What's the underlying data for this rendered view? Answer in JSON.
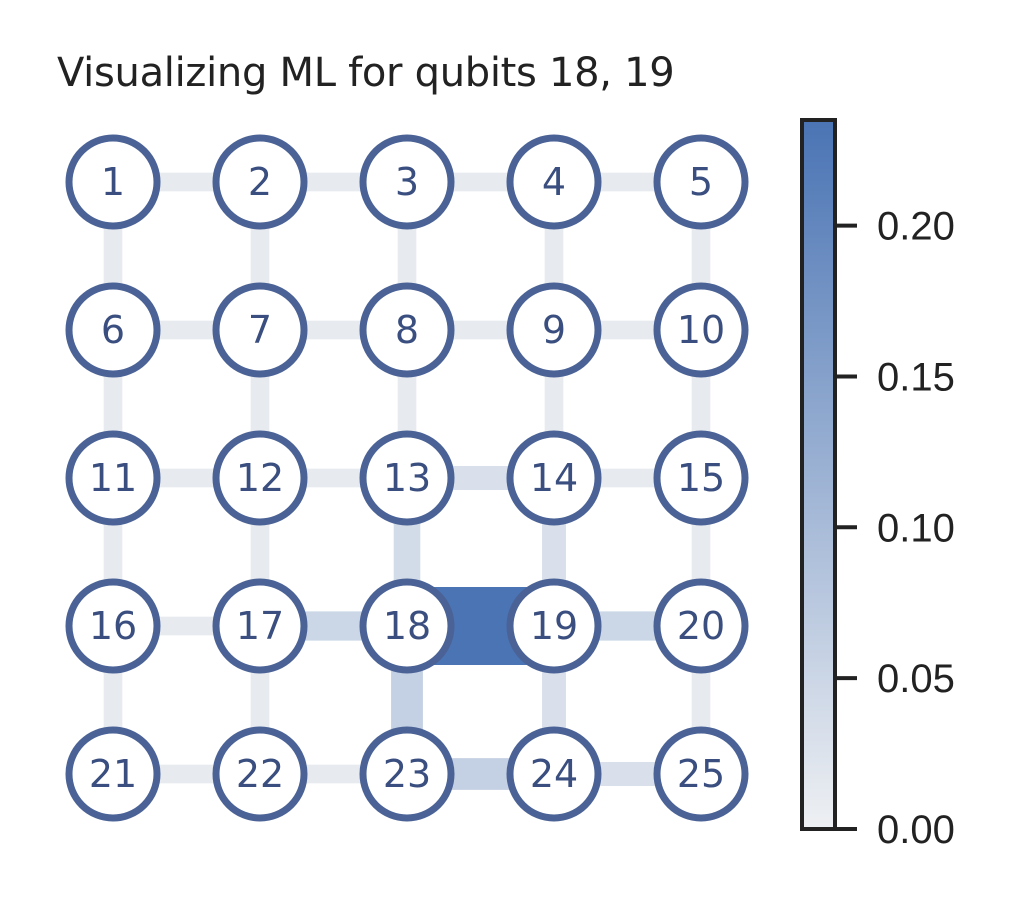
{
  "title": "Visualizing ML for qubits 18, 19",
  "colors": {
    "node_stroke": "#4a6295",
    "node_fill": "#ffffff",
    "label_color": "#3a4f7f",
    "cmap_low": "#eef0f3",
    "cmap_high": "#4a74b4",
    "axis": "#222222"
  },
  "grid": {
    "rows": 5,
    "cols": 5
  },
  "qubits": [
    "1",
    "2",
    "3",
    "4",
    "5",
    "6",
    "7",
    "8",
    "9",
    "10",
    "11",
    "12",
    "13",
    "14",
    "15",
    "16",
    "17",
    "18",
    "19",
    "20",
    "21",
    "22",
    "23",
    "24",
    "25"
  ],
  "colorbar": {
    "min": 0.0,
    "max": 0.235,
    "ticks": [
      0.0,
      0.05,
      0.1,
      0.15,
      0.2
    ],
    "tick_labels": [
      "0.00",
      "0.05",
      "0.10",
      "0.15",
      "0.20"
    ]
  },
  "edges": [
    {
      "a": 1,
      "b": 2,
      "value": 0.01
    },
    {
      "a": 2,
      "b": 3,
      "value": 0.01
    },
    {
      "a": 3,
      "b": 4,
      "value": 0.01
    },
    {
      "a": 4,
      "b": 5,
      "value": 0.01
    },
    {
      "a": 6,
      "b": 7,
      "value": 0.01
    },
    {
      "a": 7,
      "b": 8,
      "value": 0.01
    },
    {
      "a": 8,
      "b": 9,
      "value": 0.01
    },
    {
      "a": 9,
      "b": 10,
      "value": 0.01
    },
    {
      "a": 11,
      "b": 12,
      "value": 0.01
    },
    {
      "a": 12,
      "b": 13,
      "value": 0.01
    },
    {
      "a": 13,
      "b": 14,
      "value": 0.03
    },
    {
      "a": 14,
      "b": 15,
      "value": 0.01
    },
    {
      "a": 16,
      "b": 17,
      "value": 0.01
    },
    {
      "a": 17,
      "b": 18,
      "value": 0.05
    },
    {
      "a": 18,
      "b": 19,
      "value": 0.235
    },
    {
      "a": 19,
      "b": 20,
      "value": 0.05
    },
    {
      "a": 21,
      "b": 22,
      "value": 0.01
    },
    {
      "a": 22,
      "b": 23,
      "value": 0.01
    },
    {
      "a": 23,
      "b": 24,
      "value": 0.06
    },
    {
      "a": 24,
      "b": 25,
      "value": 0.03
    },
    {
      "a": 1,
      "b": 6,
      "value": 0.01
    },
    {
      "a": 6,
      "b": 11,
      "value": 0.01
    },
    {
      "a": 11,
      "b": 16,
      "value": 0.01
    },
    {
      "a": 16,
      "b": 21,
      "value": 0.01
    },
    {
      "a": 2,
      "b": 7,
      "value": 0.01
    },
    {
      "a": 7,
      "b": 12,
      "value": 0.01
    },
    {
      "a": 12,
      "b": 17,
      "value": 0.01
    },
    {
      "a": 17,
      "b": 22,
      "value": 0.01
    },
    {
      "a": 3,
      "b": 8,
      "value": 0.01
    },
    {
      "a": 8,
      "b": 13,
      "value": 0.01
    },
    {
      "a": 13,
      "b": 18,
      "value": 0.04
    },
    {
      "a": 18,
      "b": 23,
      "value": 0.06
    },
    {
      "a": 4,
      "b": 9,
      "value": 0.01
    },
    {
      "a": 9,
      "b": 14,
      "value": 0.01
    },
    {
      "a": 14,
      "b": 19,
      "value": 0.03
    },
    {
      "a": 19,
      "b": 24,
      "value": 0.03
    },
    {
      "a": 5,
      "b": 10,
      "value": 0.01
    },
    {
      "a": 10,
      "b": 15,
      "value": 0.01
    },
    {
      "a": 15,
      "b": 20,
      "value": 0.01
    },
    {
      "a": 20,
      "b": 25,
      "value": 0.01
    }
  ]
}
